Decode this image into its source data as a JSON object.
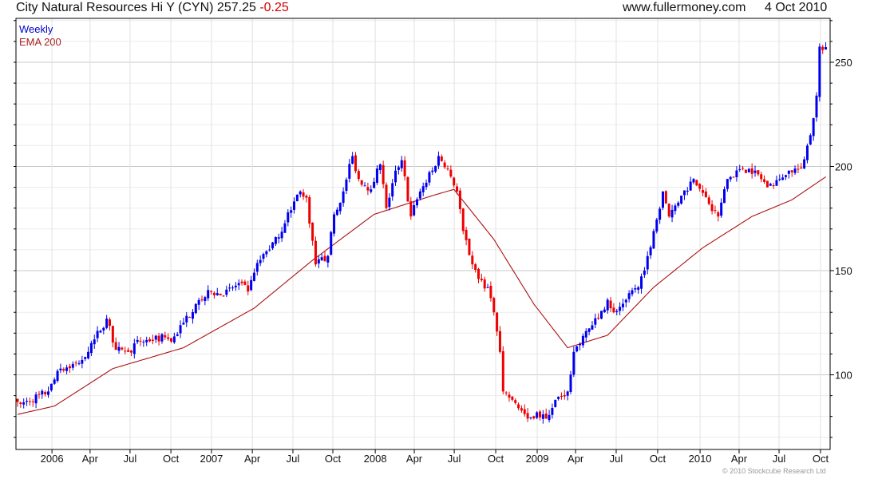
{
  "header": {
    "title": "City Natural Resources Hi Y (CYN) 257.25",
    "change": "-0.25",
    "site": "www.fullermoney.com",
    "date": "4 Oct 2010"
  },
  "legend": {
    "price": "Weekly",
    "ema": "EMA 200"
  },
  "footer": {
    "copyright": "© 2010 Stockcube Research Ltd"
  },
  "colors": {
    "up": "#0000ee",
    "down": "#ee0000",
    "ema": "#aa1111",
    "grid": "#dddddd"
  },
  "chart_data": {
    "type": "bar",
    "subtype": "weekly candlestick",
    "title": "City Natural Resources Hi Y (CYN)",
    "last": 257.25,
    "ylim": [
      64,
      272
    ],
    "xlim_weeks": [
      0,
      266
    ],
    "y_ticks": [
      100,
      150,
      200,
      250
    ],
    "x_ticks": [
      {
        "label": "2006",
        "week": 11.2
      },
      {
        "label": "Apr",
        "week": 23.6
      },
      {
        "label": "Jul",
        "week": 36.6
      },
      {
        "label": "Oct",
        "week": 49.9
      },
      {
        "label": "2007",
        "week": 63.1
      },
      {
        "label": "Apr",
        "week": 76.4
      },
      {
        "label": "Jul",
        "week": 89.6
      },
      {
        "label": "Oct",
        "week": 102.6
      },
      {
        "label": "2008",
        "week": 116.4
      },
      {
        "label": "Apr",
        "week": 129.1
      },
      {
        "label": "Jul",
        "week": 142.1
      },
      {
        "label": "Oct",
        "week": 155.6
      },
      {
        "label": "2009",
        "week": 169.1
      },
      {
        "label": "Apr",
        "week": 181.6
      },
      {
        "label": "Jul",
        "week": 194.8
      },
      {
        "label": "Oct",
        "week": 208.3
      },
      {
        "label": "2010",
        "week": 222.1
      },
      {
        "label": "Apr",
        "week": 234.8
      },
      {
        "label": "Jul",
        "week": 247.8
      },
      {
        "label": "Oct",
        "week": 261.3
      }
    ],
    "price_anchors": [
      [
        0,
        87
      ],
      [
        1,
        86
      ],
      [
        10,
        92
      ],
      [
        14,
        103
      ],
      [
        20,
        105.5
      ],
      [
        25,
        117
      ],
      [
        29,
        127
      ],
      [
        32,
        112
      ],
      [
        36,
        111
      ],
      [
        40,
        116
      ],
      [
        48,
        118
      ],
      [
        50,
        116
      ],
      [
        54,
        125
      ],
      [
        58,
        134
      ],
      [
        63,
        140
      ],
      [
        67,
        138
      ],
      [
        72,
        144
      ],
      [
        75,
        140
      ],
      [
        77,
        149
      ],
      [
        80,
        158
      ],
      [
        85,
        166
      ],
      [
        88,
        178
      ],
      [
        92,
        188
      ],
      [
        94,
        185
      ],
      [
        97,
        153
      ],
      [
        101,
        157
      ],
      [
        103,
        177
      ],
      [
        106,
        188
      ],
      [
        109,
        205
      ],
      [
        111,
        194
      ],
      [
        115,
        189
      ],
      [
        118,
        201
      ],
      [
        120,
        180
      ],
      [
        123,
        198
      ],
      [
        125,
        203
      ],
      [
        128,
        176
      ],
      [
        131,
        188
      ],
      [
        135,
        198
      ],
      [
        137,
        205
      ],
      [
        140,
        199
      ],
      [
        143,
        188
      ],
      [
        145,
        169
      ],
      [
        148,
        153
      ],
      [
        150,
        146
      ],
      [
        153,
        142
      ],
      [
        155,
        130
      ],
      [
        157,
        111
      ],
      [
        158,
        92
      ],
      [
        161,
        88
      ],
      [
        163,
        84
      ],
      [
        166,
        79
      ],
      [
        169,
        82
      ],
      [
        172,
        79
      ],
      [
        175,
        88
      ],
      [
        179,
        92
      ],
      [
        181,
        111
      ],
      [
        185,
        121
      ],
      [
        189,
        127
      ],
      [
        192,
        136
      ],
      [
        194,
        130
      ],
      [
        198,
        136
      ],
      [
        202,
        142
      ],
      [
        205,
        157
      ],
      [
        207,
        169
      ],
      [
        210,
        188
      ],
      [
        212,
        176
      ],
      [
        216,
        186
      ],
      [
        220,
        194
      ],
      [
        225,
        182
      ],
      [
        228,
        176
      ],
      [
        231,
        194
      ],
      [
        236,
        199
      ],
      [
        240,
        198
      ],
      [
        244,
        190
      ],
      [
        248,
        194
      ],
      [
        251,
        198
      ],
      [
        255,
        199
      ],
      [
        258,
        215
      ],
      [
        260,
        234
      ],
      [
        261,
        257.5
      ],
      [
        263,
        257.25
      ]
    ],
    "ema_anchors": [
      [
        0,
        81
      ],
      [
        12,
        85
      ],
      [
        31,
        103
      ],
      [
        54,
        113
      ],
      [
        77,
        132
      ],
      [
        96,
        155
      ],
      [
        116,
        177
      ],
      [
        135,
        186
      ],
      [
        142,
        189
      ],
      [
        155,
        165
      ],
      [
        168,
        134
      ],
      [
        179,
        113
      ],
      [
        192,
        119
      ],
      [
        207,
        142
      ],
      [
        223,
        161
      ],
      [
        239,
        176
      ],
      [
        252,
        184
      ],
      [
        263,
        195
      ]
    ]
  }
}
